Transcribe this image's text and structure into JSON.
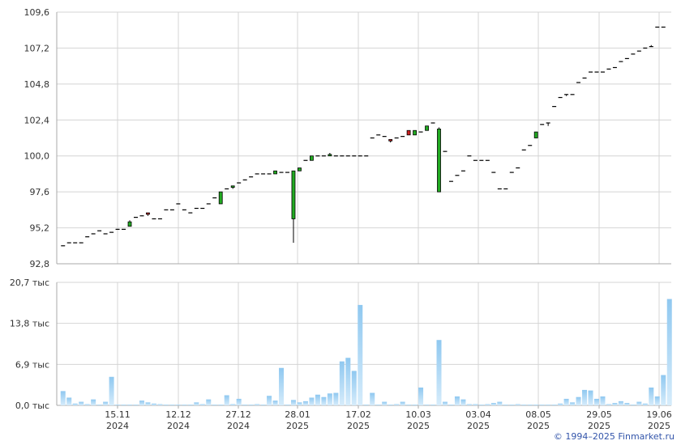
{
  "colors": {
    "grid": "#d4d4d4",
    "axis": "#aaaaaa",
    "up_candle": "#22aa22",
    "down_candle": "#cc2222",
    "volume_top": "#8fc8f0",
    "volume_bottom": "#d6ecfb",
    "copyright": "#3355aa"
  },
  "copyright": "© 1994–2025 Finmarket.ru",
  "chart_data": [
    {
      "type": "candlestick",
      "y_ticks": [
        "109,6",
        "107,2",
        "104,8",
        "102,4",
        "100,0",
        "97,6",
        "95,2",
        "92,8"
      ],
      "ylim": [
        92.8,
        109.6
      ],
      "grid": true,
      "candles": [
        {
          "o": 94.0,
          "h": 94.0,
          "l": 94.0,
          "c": 94.0
        },
        {
          "o": 94.2,
          "h": 94.2,
          "l": 94.2,
          "c": 94.2
        },
        {
          "o": 94.2,
          "h": 94.2,
          "l": 94.2,
          "c": 94.2
        },
        {
          "o": 94.2,
          "h": 94.2,
          "l": 94.2,
          "c": 94.2
        },
        {
          "o": 94.6,
          "h": 94.6,
          "l": 94.6,
          "c": 94.6
        },
        {
          "o": 94.8,
          "h": 94.8,
          "l": 94.8,
          "c": 94.8
        },
        {
          "o": 95.0,
          "h": 95.0,
          "l": 95.0,
          "c": 95.0
        },
        {
          "o": 94.8,
          "h": 94.8,
          "l": 94.8,
          "c": 94.8
        },
        {
          "o": 94.9,
          "h": 94.9,
          "l": 94.9,
          "c": 94.9
        },
        {
          "o": 95.1,
          "h": 95.1,
          "l": 95.1,
          "c": 95.1
        },
        {
          "o": 95.1,
          "h": 95.1,
          "l": 95.1,
          "c": 95.1
        },
        {
          "o": 95.3,
          "h": 95.7,
          "l": 95.3,
          "c": 95.6
        },
        {
          "o": 95.9,
          "h": 95.9,
          "l": 95.9,
          "c": 95.9
        },
        {
          "o": 96.0,
          "h": 96.0,
          "l": 96.0,
          "c": 96.0
        },
        {
          "o": 96.2,
          "h": 96.2,
          "l": 96.0,
          "c": 96.1
        },
        {
          "o": 95.8,
          "h": 95.8,
          "l": 95.8,
          "c": 95.8
        },
        {
          "o": 95.8,
          "h": 95.8,
          "l": 95.8,
          "c": 95.8
        },
        {
          "o": 96.4,
          "h": 96.4,
          "l": 96.4,
          "c": 96.4
        },
        {
          "o": 96.4,
          "h": 96.4,
          "l": 96.4,
          "c": 96.4
        },
        {
          "o": 96.8,
          "h": 96.8,
          "l": 96.8,
          "c": 96.8
        },
        {
          "o": 96.4,
          "h": 96.4,
          "l": 96.4,
          "c": 96.4
        },
        {
          "o": 96.2,
          "h": 96.2,
          "l": 96.2,
          "c": 96.2
        },
        {
          "o": 96.5,
          "h": 96.5,
          "l": 96.5,
          "c": 96.5
        },
        {
          "o": 96.5,
          "h": 96.5,
          "l": 96.5,
          "c": 96.5
        },
        {
          "o": 96.8,
          "h": 96.8,
          "l": 96.8,
          "c": 96.8
        },
        {
          "o": 97.2,
          "h": 97.2,
          "l": 97.2,
          "c": 97.2
        },
        {
          "o": 96.8,
          "h": 97.6,
          "l": 96.8,
          "c": 97.6
        },
        {
          "o": 97.8,
          "h": 97.8,
          "l": 97.8,
          "c": 97.8
        },
        {
          "o": 97.9,
          "h": 98.0,
          "l": 97.8,
          "c": 98.0
        },
        {
          "o": 98.2,
          "h": 98.2,
          "l": 98.2,
          "c": 98.2
        },
        {
          "o": 98.4,
          "h": 98.4,
          "l": 98.4,
          "c": 98.4
        },
        {
          "o": 98.6,
          "h": 98.6,
          "l": 98.6,
          "c": 98.6
        },
        {
          "o": 98.8,
          "h": 98.8,
          "l": 98.8,
          "c": 98.8
        },
        {
          "o": 98.8,
          "h": 98.8,
          "l": 98.8,
          "c": 98.8
        },
        {
          "o": 98.8,
          "h": 98.8,
          "l": 98.8,
          "c": 98.8
        },
        {
          "o": 98.8,
          "h": 99.0,
          "l": 98.8,
          "c": 99.0
        },
        {
          "o": 98.9,
          "h": 98.9,
          "l": 98.9,
          "c": 98.9
        },
        {
          "o": 98.9,
          "h": 98.9,
          "l": 98.9,
          "c": 98.9
        },
        {
          "o": 95.8,
          "h": 99.0,
          "l": 94.2,
          "c": 99.0
        },
        {
          "o": 99.0,
          "h": 99.2,
          "l": 99.0,
          "c": 99.2
        },
        {
          "o": 99.7,
          "h": 99.7,
          "l": 99.7,
          "c": 99.7
        },
        {
          "o": 99.7,
          "h": 100.0,
          "l": 99.7,
          "c": 100.0
        },
        {
          "o": 100.0,
          "h": 100.0,
          "l": 100.0,
          "c": 100.0
        },
        {
          "o": 100.0,
          "h": 100.0,
          "l": 100.0,
          "c": 100.0
        },
        {
          "o": 100.0,
          "h": 100.2,
          "l": 100.0,
          "c": 100.1
        },
        {
          "o": 100.0,
          "h": 100.0,
          "l": 100.0,
          "c": 100.0
        },
        {
          "o": 100.0,
          "h": 100.0,
          "l": 100.0,
          "c": 100.0
        },
        {
          "o": 100.0,
          "h": 100.0,
          "l": 100.0,
          "c": 100.0
        },
        {
          "o": 100.0,
          "h": 100.0,
          "l": 100.0,
          "c": 100.0
        },
        {
          "o": 100.0,
          "h": 100.0,
          "l": 100.0,
          "c": 100.0
        },
        {
          "o": 100.0,
          "h": 100.0,
          "l": 100.0,
          "c": 100.0
        },
        {
          "o": 101.2,
          "h": 101.2,
          "l": 101.2,
          "c": 101.2
        },
        {
          "o": 101.4,
          "h": 101.4,
          "l": 101.4,
          "c": 101.4
        },
        {
          "o": 101.3,
          "h": 101.3,
          "l": 101.3,
          "c": 101.3
        },
        {
          "o": 101.1,
          "h": 101.1,
          "l": 100.9,
          "c": 101.0
        },
        {
          "o": 101.2,
          "h": 101.2,
          "l": 101.2,
          "c": 101.2
        },
        {
          "o": 101.3,
          "h": 101.3,
          "l": 101.3,
          "c": 101.3
        },
        {
          "o": 101.7,
          "h": 101.7,
          "l": 101.4,
          "c": 101.4
        },
        {
          "o": 101.4,
          "h": 101.7,
          "l": 101.4,
          "c": 101.7
        },
        {
          "o": 101.6,
          "h": 101.6,
          "l": 101.6,
          "c": 101.6
        },
        {
          "o": 101.7,
          "h": 102.0,
          "l": 101.7,
          "c": 102.0
        },
        {
          "o": 102.2,
          "h": 102.2,
          "l": 102.2,
          "c": 102.2
        },
        {
          "o": 97.6,
          "h": 101.9,
          "l": 97.6,
          "c": 101.8
        },
        {
          "o": 100.3,
          "h": 100.3,
          "l": 100.3,
          "c": 100.3
        },
        {
          "o": 98.3,
          "h": 98.3,
          "l": 98.3,
          "c": 98.3
        },
        {
          "o": 98.7,
          "h": 98.7,
          "l": 98.7,
          "c": 98.7
        },
        {
          "o": 99.0,
          "h": 99.0,
          "l": 99.0,
          "c": 99.0
        },
        {
          "o": 100.0,
          "h": 100.0,
          "l": 100.0,
          "c": 100.0
        },
        {
          "o": 99.7,
          "h": 99.7,
          "l": 99.7,
          "c": 99.7
        },
        {
          "o": 99.7,
          "h": 99.7,
          "l": 99.7,
          "c": 99.7
        },
        {
          "o": 99.7,
          "h": 99.7,
          "l": 99.7,
          "c": 99.7
        },
        {
          "o": 98.9,
          "h": 98.9,
          "l": 98.9,
          "c": 98.9
        },
        {
          "o": 97.8,
          "h": 97.8,
          "l": 97.8,
          "c": 97.8
        },
        {
          "o": 97.8,
          "h": 97.8,
          "l": 97.8,
          "c": 97.8
        },
        {
          "o": 98.9,
          "h": 98.9,
          "l": 98.9,
          "c": 98.9
        },
        {
          "o": 99.2,
          "h": 99.2,
          "l": 99.2,
          "c": 99.2
        },
        {
          "o": 100.4,
          "h": 100.4,
          "l": 100.4,
          "c": 100.4
        },
        {
          "o": 100.7,
          "h": 100.7,
          "l": 100.7,
          "c": 100.7
        },
        {
          "o": 101.2,
          "h": 101.6,
          "l": 101.2,
          "c": 101.6
        },
        {
          "o": 102.1,
          "h": 102.1,
          "l": 102.1,
          "c": 102.1
        },
        {
          "o": 102.2,
          "h": 102.2,
          "l": 102.0,
          "c": 102.2
        },
        {
          "o": 103.3,
          "h": 103.3,
          "l": 103.3,
          "c": 103.3
        },
        {
          "o": 103.9,
          "h": 103.9,
          "l": 103.9,
          "c": 103.9
        },
        {
          "o": 104.1,
          "h": 104.1,
          "l": 104.0,
          "c": 104.1
        },
        {
          "o": 104.1,
          "h": 104.1,
          "l": 104.1,
          "c": 104.1
        },
        {
          "o": 104.9,
          "h": 104.9,
          "l": 104.9,
          "c": 104.9
        },
        {
          "o": 105.2,
          "h": 105.2,
          "l": 105.2,
          "c": 105.2
        },
        {
          "o": 105.6,
          "h": 105.6,
          "l": 105.6,
          "c": 105.6
        },
        {
          "o": 105.6,
          "h": 105.6,
          "l": 105.6,
          "c": 105.6
        },
        {
          "o": 105.6,
          "h": 105.6,
          "l": 105.6,
          "c": 105.6
        },
        {
          "o": 105.8,
          "h": 105.8,
          "l": 105.8,
          "c": 105.8
        },
        {
          "o": 105.9,
          "h": 105.9,
          "l": 105.9,
          "c": 105.9
        },
        {
          "o": 106.3,
          "h": 106.3,
          "l": 106.3,
          "c": 106.3
        },
        {
          "o": 106.5,
          "h": 106.5,
          "l": 106.5,
          "c": 106.5
        },
        {
          "o": 106.8,
          "h": 106.8,
          "l": 106.8,
          "c": 106.8
        },
        {
          "o": 107.0,
          "h": 107.0,
          "l": 107.0,
          "c": 107.0
        },
        {
          "o": 107.2,
          "h": 107.2,
          "l": 107.2,
          "c": 107.2
        },
        {
          "o": 107.3,
          "h": 107.4,
          "l": 107.3,
          "c": 107.3
        },
        {
          "o": 108.6,
          "h": 108.6,
          "l": 108.6,
          "c": 108.6
        },
        {
          "o": 108.6,
          "h": 108.6,
          "l": 108.6,
          "c": 108.6
        }
      ]
    },
    {
      "type": "bar",
      "y_ticks": [
        "20,7 тыс",
        "13,8 тыс",
        "6,9 тыс",
        "0,0 тыс"
      ],
      "ylim": [
        0,
        20.7
      ],
      "unit": "тыс",
      "grid": true,
      "x_ticks": [
        {
          "day": "15.11",
          "year": "2024"
        },
        {
          "day": "12.12",
          "year": "2024"
        },
        {
          "day": "27.12",
          "year": "2024"
        },
        {
          "day": "28.01",
          "year": "2025"
        },
        {
          "day": "17.02",
          "year": "2025"
        },
        {
          "day": "10.03",
          "year": "2025"
        },
        {
          "day": "03.04",
          "year": "2025"
        },
        {
          "day": "08.05",
          "year": "2025"
        },
        {
          "day": "29.05",
          "year": "2025"
        },
        {
          "day": "19.06",
          "year": "2025"
        }
      ],
      "values": [
        2.4,
        1.3,
        0.3,
        0.6,
        0.2,
        1.0,
        0.0,
        0.6,
        4.8,
        0.1,
        0.1,
        0.1,
        0.0,
        0.8,
        0.5,
        0.3,
        0.2,
        0.1,
        0.1,
        0.1,
        0.1,
        0.1,
        0.5,
        0.2,
        1.0,
        0.1,
        0.1,
        1.7,
        0.2,
        1.1,
        0.1,
        0.1,
        0.2,
        0.1,
        1.6,
        0.8,
        6.3,
        0.1,
        0.9,
        0.5,
        0.7,
        1.3,
        1.8,
        1.4,
        2.0,
        2.1,
        7.4,
        8.0,
        5.8,
        16.9,
        0.1,
        2.1,
        0.1,
        0.6,
        0.1,
        0.2,
        0.6,
        0.1,
        0.1,
        3.0,
        0.1,
        0.1,
        11.0,
        0.6,
        0.1,
        1.5,
        1.0,
        0.2,
        0.2,
        0.1,
        0.2,
        0.4,
        0.6,
        0.1,
        0.1,
        0.2,
        0.1,
        0.1,
        0.1,
        0.1,
        0.1,
        0.1,
        0.3,
        1.1,
        0.5,
        1.4,
        2.6,
        2.5,
        1.1,
        1.5,
        0.2,
        0.4,
        0.7,
        0.4,
        0.1,
        0.6,
        0.3,
        3.0,
        1.5,
        5.1,
        17.9
      ]
    }
  ]
}
